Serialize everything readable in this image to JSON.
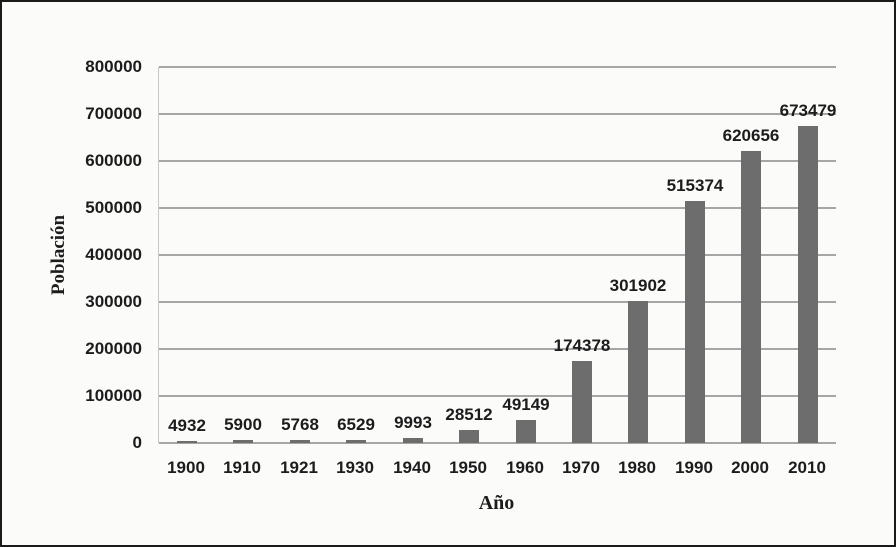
{
  "figure": {
    "background": "#fbfbfa",
    "border_color": "#1a1a1a"
  },
  "chart_data": {
    "type": "bar",
    "title": "",
    "xlabel": "Año",
    "ylabel": "Población",
    "categories": [
      "1900",
      "1910",
      "1921",
      "1930",
      "1940",
      "1950",
      "1960",
      "1970",
      "1980",
      "1990",
      "2000",
      "2010"
    ],
    "values": [
      4932,
      5900,
      5768,
      6529,
      9993,
      28512,
      49149,
      174378,
      301902,
      515374,
      620656,
      673479
    ],
    "data_labels": [
      "4932",
      "5900",
      "5768",
      "6529",
      "9993",
      "28512",
      "49149",
      "174378",
      "301902",
      "515374",
      "620656",
      "673479"
    ],
    "ylim": [
      0,
      800000
    ],
    "ytick_interval": 100000,
    "ytick_labels": [
      "0",
      "100000",
      "200000",
      "300000",
      "400000",
      "500000",
      "600000",
      "700000",
      "800000"
    ],
    "grid": "horizontal",
    "legend": "none",
    "bar_color": "#6d6d6d",
    "gridline_color": "#a6a6a6",
    "text_color": "#1c1c1c"
  }
}
